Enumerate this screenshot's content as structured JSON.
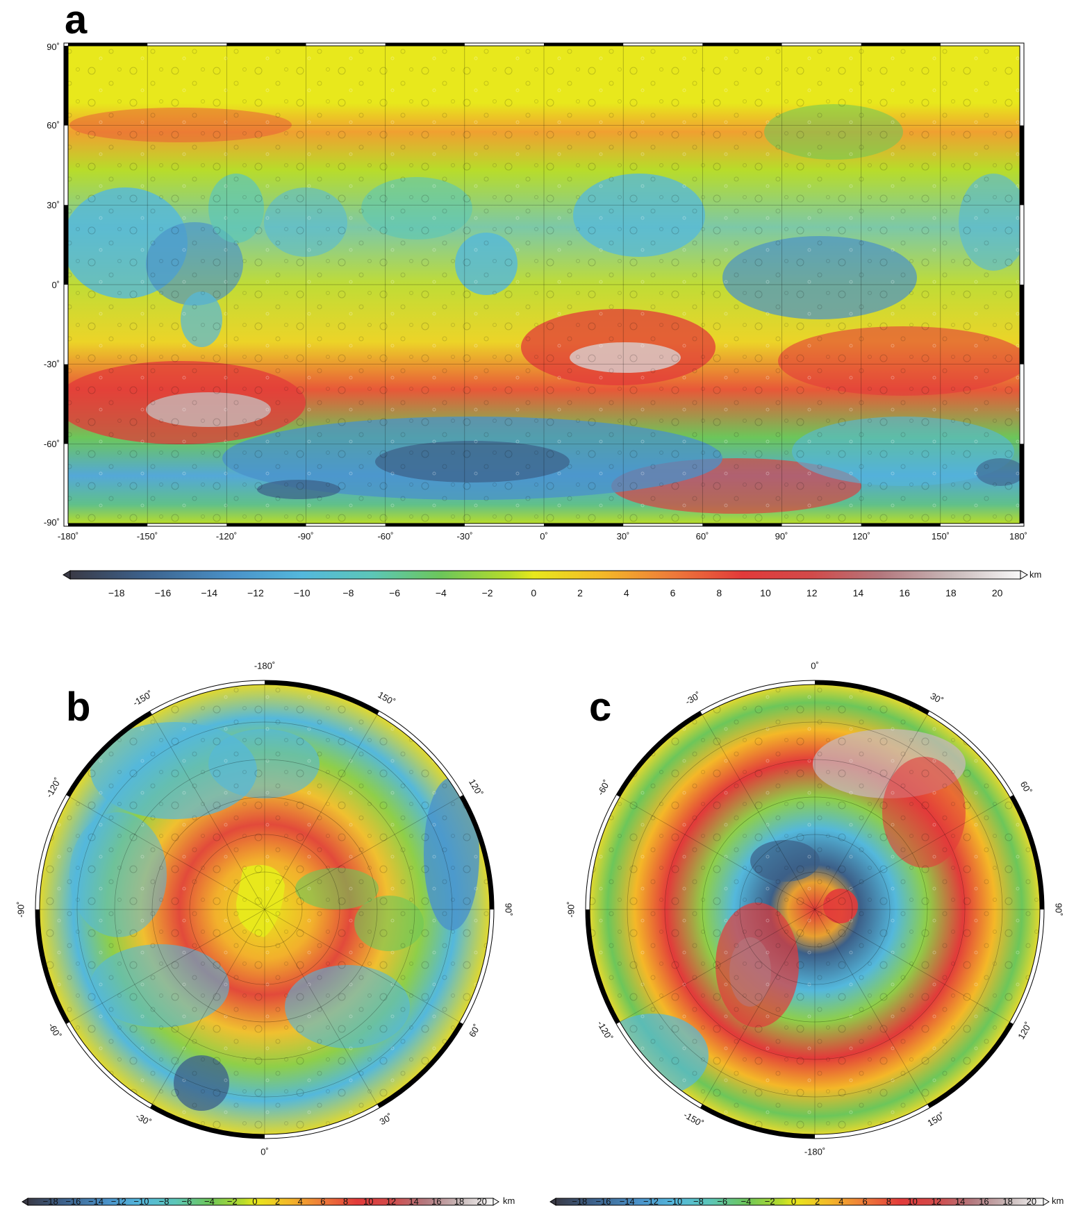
{
  "panels": {
    "a": {
      "letter": "a",
      "lat_labels": [
        "90˚",
        "60˚",
        "30˚",
        "0˚",
        "-30˚",
        "-60˚",
        "-90˚"
      ],
      "lon_labels": [
        "-180˚",
        "-150˚",
        "-120˚",
        "-90˚",
        "-60˚",
        "-30˚",
        "0˚",
        "30˚",
        "60˚",
        "90˚",
        "120˚",
        "150˚",
        "180˚"
      ]
    },
    "b": {
      "letter": "b",
      "ring_labels": [
        "-180˚",
        "150˚",
        "120˚",
        "90˚",
        "60˚",
        "30˚",
        "0˚",
        "-30˚",
        "-60˚",
        "-90˚",
        "-120˚",
        "-150˚"
      ]
    },
    "c": {
      "letter": "c",
      "ring_labels": [
        "0˚",
        "30˚",
        "60˚",
        "90˚",
        "120˚",
        "150˚",
        "-180˚",
        "-150˚",
        "-120˚",
        "-90˚",
        "-60˚",
        "-30˚"
      ]
    }
  },
  "colorbar": {
    "unit": "km",
    "ticks": [
      "-18",
      "-16",
      "-14",
      "-12",
      "-10",
      "-8",
      "-6",
      "-4",
      "-2",
      "0",
      "2",
      "4",
      "6",
      "8",
      "10",
      "12",
      "14",
      "16",
      "18",
      "20"
    ],
    "stops": [
      {
        "v": -20,
        "c": "#3a3a46"
      },
      {
        "v": -17,
        "c": "#3c5f88"
      },
      {
        "v": -13,
        "c": "#4a92c9"
      },
      {
        "v": -10,
        "c": "#54b8dc"
      },
      {
        "v": -7,
        "c": "#5cc6b8"
      },
      {
        "v": -4,
        "c": "#6cc65a"
      },
      {
        "v": -1,
        "c": "#b8dc2a"
      },
      {
        "v": 0,
        "c": "#e8e81c"
      },
      {
        "v": 3,
        "c": "#f4b828"
      },
      {
        "v": 6,
        "c": "#ee7a3a"
      },
      {
        "v": 9,
        "c": "#e23a3a"
      },
      {
        "v": 12,
        "c": "#d24a4a"
      },
      {
        "v": 15,
        "c": "#b4787e"
      },
      {
        "v": 18,
        "c": "#c8b8b8"
      },
      {
        "v": 21,
        "c": "#f8f8f8"
      }
    ]
  }
}
